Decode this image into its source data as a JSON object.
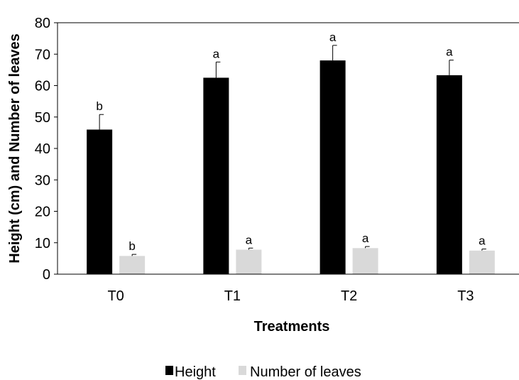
{
  "chart_data": {
    "type": "bar",
    "title": "",
    "xlabel": "Treatments",
    "ylabel": "Height (cm) and Number of leaves",
    "categories": [
      "T0",
      "T1",
      "T2",
      "T3"
    ],
    "ylim": [
      0,
      80
    ],
    "yticks": [
      0,
      10,
      20,
      30,
      40,
      50,
      60,
      70,
      80
    ],
    "grid": false,
    "legend_position": "bottom",
    "series": [
      {
        "name": "Height",
        "color": "#000000",
        "values": [
          46.0,
          62.5,
          68.0,
          63.3
        ],
        "errors": [
          4.8,
          5.0,
          4.8,
          4.8
        ],
        "letters": [
          "b",
          "a",
          "a",
          "a"
        ]
      },
      {
        "name": "Number of leaves",
        "color": "#d9d9d9",
        "values": [
          5.8,
          7.8,
          8.3,
          7.5
        ],
        "errors": [
          0.5,
          0.5,
          0.5,
          0.5
        ],
        "letters": [
          "b",
          "a",
          "a",
          "a"
        ]
      }
    ]
  }
}
